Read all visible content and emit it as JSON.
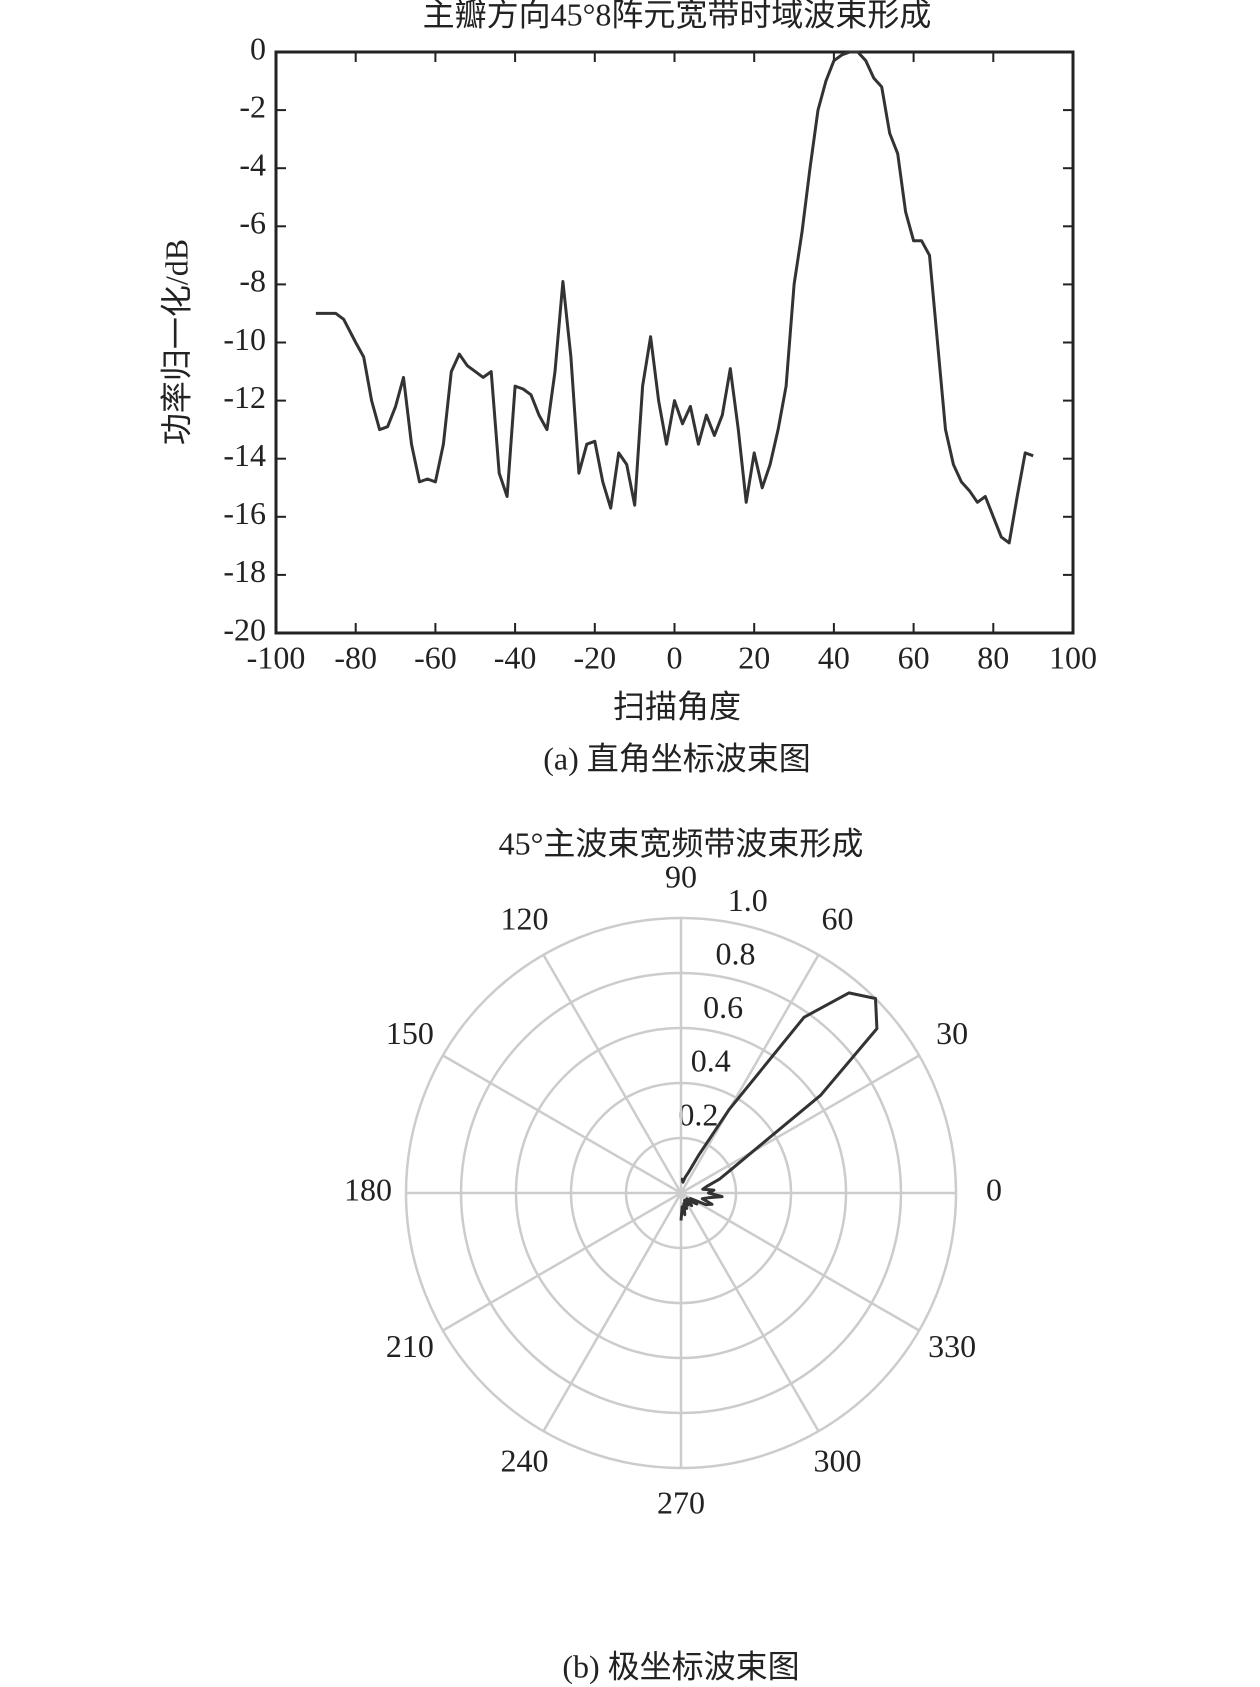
{
  "chart_data": [
    {
      "type": "line",
      "title": "主瓣方向45°8阵元宽带时域波束形成",
      "xlabel": "扫描角度",
      "ylabel": "功率归一化/dB",
      "caption": "(a) 直角坐标波束图",
      "color": "#333333",
      "x": [
        -90,
        -85,
        -83,
        -80,
        -78,
        -76,
        -74,
        -72,
        -70,
        -68,
        -66,
        -64,
        -62,
        -60,
        -58,
        -56,
        -54,
        -52,
        -50,
        -48,
        -46,
        -44,
        -42,
        -40,
        -38,
        -36,
        -34,
        -32,
        -30,
        -28,
        -26,
        -24,
        -22,
        -20,
        -18,
        -16,
        -14,
        -12,
        -10,
        -8,
        -6,
        -4,
        -2,
        0,
        2,
        4,
        6,
        8,
        10,
        12,
        14,
        16,
        18,
        20,
        22,
        24,
        26,
        28,
        30,
        32,
        34,
        36,
        38,
        40,
        42,
        44,
        46,
        48,
        50,
        52,
        54,
        56,
        58,
        60,
        62,
        64,
        66,
        68,
        70,
        72,
        74,
        76,
        78,
        80,
        82,
        84,
        86,
        88,
        90
      ],
      "values": [
        -9,
        -9,
        -9.2,
        -10,
        -10.5,
        -12,
        -13,
        -12.9,
        -12.2,
        -11.2,
        -13.5,
        -14.8,
        -14.7,
        -14.8,
        -13.5,
        -11,
        -10.4,
        -10.8,
        -11,
        -11.2,
        -11,
        -14.5,
        -15.3,
        -11.5,
        -11.6,
        -11.8,
        -12.5,
        -13,
        -11,
        -7.9,
        -10.5,
        -14.5,
        -13.5,
        -13.4,
        -14.8,
        -15.7,
        -13.8,
        -14.2,
        -15.6,
        -11.5,
        -9.8,
        -12,
        -13.5,
        -12,
        -12.8,
        -12.2,
        -13.5,
        -12.5,
        -13.2,
        -12.5,
        -10.9,
        -13,
        -15.5,
        -13.8,
        -15,
        -14.2,
        -13,
        -11.5,
        -8,
        -6.2,
        -4,
        -2,
        -1,
        -0.3,
        -0.1,
        0,
        0,
        -0.3,
        -0.9,
        -1.2,
        -2.8,
        -3.5,
        -5.5,
        -6.5,
        -6.5,
        -7,
        -10,
        -13,
        -14.2,
        -14.8,
        -15.1,
        -15.5,
        -15.3,
        -16,
        -16.7,
        -16.9,
        -15.3,
        -13.8,
        -13.9
      ],
      "xlim": [
        -100,
        100
      ],
      "xticks": [
        -100,
        -80,
        -60,
        -40,
        -20,
        0,
        20,
        40,
        60,
        80,
        100
      ],
      "ylim": [
        -20,
        0
      ],
      "yticks": [
        0,
        -2,
        -4,
        -6,
        -8,
        -10,
        -12,
        -14,
        -16,
        -18,
        -20
      ]
    },
    {
      "type": "polar",
      "title": "45°主波束宽频带波束形成",
      "caption": "(b) 极坐标波束图",
      "color": "#333333",
      "grid": true,
      "theta": [
        -90,
        -85,
        -80,
        -75,
        -70,
        -65,
        -60,
        -55,
        -50,
        -45,
        -40,
        -35,
        -30,
        -25,
        -20,
        -15,
        -10,
        -5,
        0,
        5,
        10,
        15,
        20,
        25,
        30,
        35,
        40,
        45,
        50,
        55,
        60,
        65,
        70,
        75,
        80,
        85,
        90
      ],
      "values": [
        0.1,
        0.05,
        0.08,
        0.04,
        0.06,
        0.03,
        0.05,
        0.04,
        0.06,
        0.03,
        0.05,
        0.07,
        0.04,
        0.1,
        0.12,
        0.08,
        0.1,
        0.15,
        0.1,
        0.12,
        0.08,
        0.1,
        0.15,
        0.2,
        0.3,
        0.62,
        0.93,
        1.0,
        0.95,
        0.78,
        0.35,
        0.15,
        0.08,
        0.06,
        0.04,
        0.05,
        0.05
      ],
      "thetaticks": [
        0,
        30,
        60,
        90,
        120,
        150,
        180,
        210,
        240,
        270,
        300,
        330
      ],
      "rlim": [
        0,
        1
      ],
      "rticks": [
        0.2,
        0.4,
        0.6,
        0.8,
        {
          "value": 1,
          "label": "1.0"
        }
      ]
    }
  ]
}
